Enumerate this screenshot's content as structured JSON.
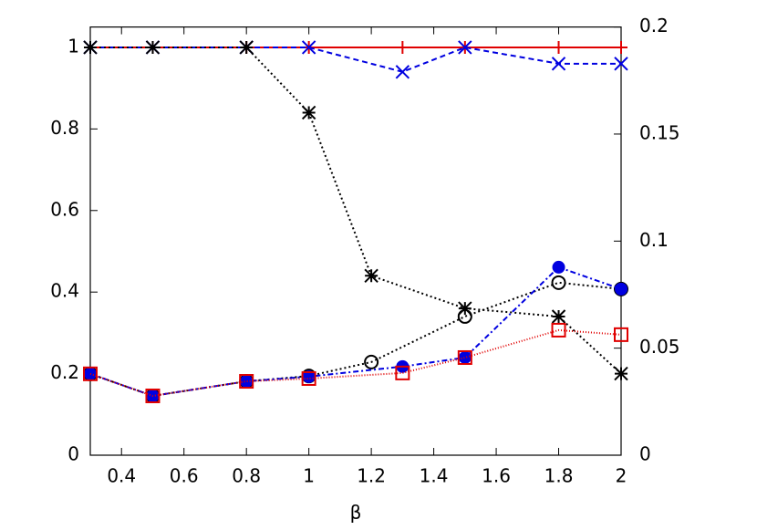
{
  "chart_data": {
    "type": "line",
    "xlabel": "β",
    "xlim": [
      0.3,
      2
    ],
    "xticks": [
      0.4,
      0.6,
      0.8,
      1,
      1.2,
      1.4,
      1.6,
      1.8,
      2
    ],
    "ylim": [
      0,
      1.05
    ],
    "yticks": [
      0,
      0.2,
      0.4,
      0.6,
      0.8,
      1
    ],
    "y2lim": [
      0,
      0.2
    ],
    "y2ticks": [
      0,
      0.05,
      0.1,
      0.15,
      0.2
    ],
    "grid": false,
    "series": [
      {
        "color": "#e00000",
        "marker": "plus",
        "dash": "",
        "x": [
          0.3,
          0.5,
          0.8,
          1,
          1.3,
          1.5,
          1.8,
          2
        ],
        "values": [
          1,
          1,
          1,
          1,
          1,
          1,
          1,
          1
        ]
      },
      {
        "color": "#0000e0",
        "marker": "cross",
        "dash": "6 4",
        "x": [
          0.3,
          0.5,
          0.8,
          1,
          1.3,
          1.5,
          1.8,
          2
        ],
        "values": [
          1,
          1,
          1,
          1,
          0.94,
          1,
          0.96,
          0.96
        ]
      },
      {
        "color": "#000000",
        "marker": "star",
        "dash": "2 3",
        "x": [
          0.3,
          0.5,
          0.8,
          1,
          1.2,
          1.5,
          1.8,
          2
        ],
        "values": [
          1,
          1,
          1,
          0.84,
          0.44,
          0.36,
          0.34,
          0.2
        ]
      },
      {
        "color": "#000000",
        "marker": "circle",
        "dash": "2 3",
        "axis": "y2",
        "x": [
          0.3,
          0.5,
          0.8,
          1,
          1.2,
          1.5,
          1.8,
          2
        ],
        "values": [
          0.038,
          0.0277,
          0.0345,
          0.037,
          0.0435,
          0.0648,
          0.0806,
          0.0776
        ]
      },
      {
        "color": "#0000e0",
        "marker": "dot",
        "dash": "6 3 2 3",
        "axis": "y2",
        "x": [
          0.3,
          0.5,
          0.8,
          1,
          1.3,
          1.5,
          1.8,
          2
        ],
        "values": [
          0.038,
          0.0277,
          0.0345,
          0.0367,
          0.0414,
          0.0456,
          0.0878,
          0.0776
        ]
      },
      {
        "color": "#e00000",
        "marker": "square",
        "dash": "1 2",
        "axis": "y2",
        "x": [
          0.3,
          0.5,
          0.8,
          1,
          1.3,
          1.5,
          1.8,
          2
        ],
        "values": [
          0.038,
          0.0277,
          0.0345,
          0.0358,
          0.0384,
          0.0456,
          0.0584,
          0.0563
        ]
      }
    ]
  }
}
